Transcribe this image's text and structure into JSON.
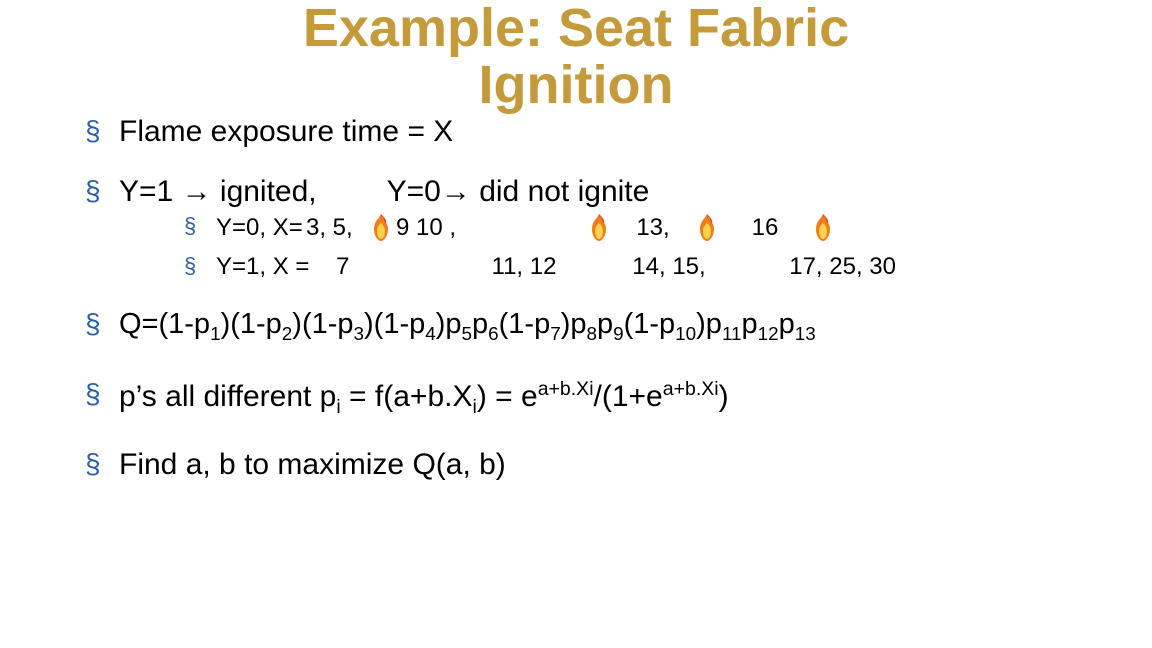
{
  "title_color": "#c49a3a",
  "title_line1": "Example: Seat Fabric",
  "title_line2": "Ignition",
  "bullet1": "Flame exposure time = X",
  "bullet2_a": "Y=1 ",
  "bullet2_arrow": "→",
  "bullet2_b": " ignited,",
  "bullet2_gap": "      ",
  "bullet2_c": "Y=0",
  "bullet2_d": " did not ignite",
  "row0_label": "Y=0, X= ",
  "row0_g1": "3, 5,",
  "row0_g2": "9 10 ,",
  "row0_g3": "13,",
  "row0_g4": "16",
  "row1_label": "Y=1, X =",
  "row1_g1": "7",
  "row1_g2": "11, 12",
  "row1_g3": "14, 15,",
  "row1_g4": "17, 25, 30",
  "q_prefix": "Q=(1-p",
  "q_parts": [
    ")(1-p",
    ")(1-p",
    ")(1-p",
    ")p",
    "p",
    "(1-p",
    ")p",
    "p",
    "(1-p",
    ")p",
    "p",
    "p"
  ],
  "p_line_a": "p’s all different  p",
  "p_line_b": " = f(a+b.X",
  "p_line_c": ") = e",
  "p_line_d": "/(1+e",
  "p_line_e": ")",
  "exp_text": "a+b.Xi",
  "find_line": "Find a, b to maximize Q(a, b)",
  "flame_body": "#f07d1a",
  "flame_inner": "#ffd24a",
  "flame_tip": "#d43b1a"
}
